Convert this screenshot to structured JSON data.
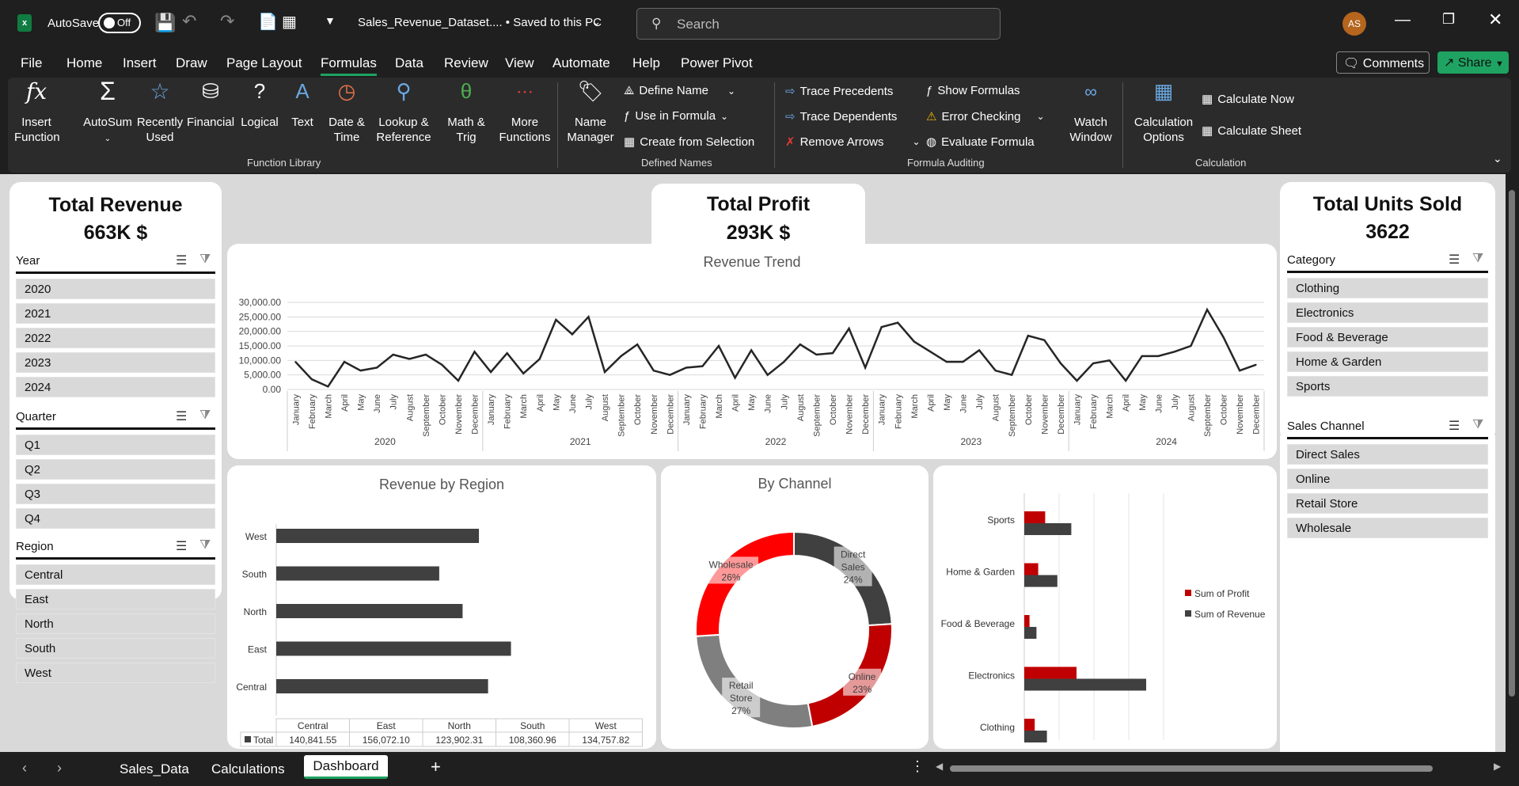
{
  "titlebar": {
    "autosave_label": "AutoSave",
    "autosave_state": "Off",
    "doc_title": "Sales_Revenue_Dataset.... • Saved to this PC",
    "search_placeholder": "Search",
    "avatar": "AS"
  },
  "menu": {
    "items": [
      "File",
      "Home",
      "Insert",
      "Draw",
      "Page Layout",
      "Formulas",
      "Data",
      "Review",
      "View",
      "Automate",
      "Help",
      "Power Pivot"
    ],
    "active": "Formulas",
    "comments": "Comments",
    "share": "Share"
  },
  "ribbon": {
    "function_library": {
      "buttons": [
        "Insert\nFunction",
        "AutoSum",
        "Recently\nUsed",
        "Financial",
        "Logical",
        "Text",
        "Date &\nTime",
        "Lookup &\nReference",
        "Math &\nTrig",
        "More\nFunctions"
      ],
      "label": "Function Library"
    },
    "defined_names": {
      "name_manager": "Name\nManager",
      "define_name": "Define Name",
      "use_in_formula": "Use in Formula",
      "create_from_selection": "Create from Selection",
      "label": "Defined Names"
    },
    "formula_auditing": {
      "trace_precedents": "Trace Precedents",
      "trace_dependents": "Trace Dependents",
      "remove_arrows": "Remove Arrows",
      "show_formulas": "Show Formulas",
      "error_checking": "Error Checking",
      "evaluate_formula": "Evaluate Formula",
      "watch_window": "Watch\nWindow",
      "label": "Formula Auditing"
    },
    "calculation": {
      "calc_options": "Calculation\nOptions",
      "calc_now": "Calculate Now",
      "calc_sheet": "Calculate Sheet",
      "label": "Calculation"
    }
  },
  "kpis": {
    "revenue_title": "Total Revenue",
    "revenue_value": "663K $",
    "profit_title": "Total Profit",
    "profit_value": "293K $",
    "units_title": "Total Units Sold",
    "units_value": "3622"
  },
  "slicers": {
    "year": {
      "title": "Year",
      "items": [
        "2020",
        "2021",
        "2022",
        "2023",
        "2024"
      ]
    },
    "quarter": {
      "title": "Quarter",
      "items": [
        "Q1",
        "Q2",
        "Q3",
        "Q4"
      ]
    },
    "region": {
      "title": "Region",
      "items": [
        "Central",
        "East",
        "North",
        "South",
        "West"
      ]
    },
    "category": {
      "title": "Category",
      "items": [
        "Clothing",
        "Electronics",
        "Food & Beverage",
        "Home & Garden",
        "Sports"
      ]
    },
    "channel": {
      "title": "Sales Channel",
      "items": [
        "Direct Sales",
        "Online",
        "Retail Store",
        "Wholesale"
      ]
    }
  },
  "colors": {
    "dark": "#3a3a3a",
    "red": "#ff0000",
    "darkred": "#c00000",
    "gray": "#7f7f7f"
  },
  "chart_data": [
    {
      "type": "line",
      "title": "Revenue Trend",
      "months": [
        "January",
        "February",
        "March",
        "April",
        "May",
        "June",
        "July",
        "August",
        "September",
        "October",
        "November",
        "December"
      ],
      "years": [
        "2020",
        "2021",
        "2022",
        "2023",
        "2024"
      ],
      "ylim": [
        0,
        30000
      ],
      "yticks": [
        "30,000.00",
        "25,000.00",
        "20,000.00",
        "15,000.00",
        "10,000.00",
        "5,000.00",
        "0.00"
      ],
      "values": [
        9500,
        3500,
        1000,
        9500,
        6500,
        7500,
        12000,
        10500,
        12000,
        8500,
        3000,
        13000,
        6000,
        12500,
        5500,
        10500,
        24000,
        19000,
        25000,
        6000,
        11500,
        15500,
        6500,
        5000,
        7500,
        8000,
        15000,
        4000,
        13500,
        5000,
        9500,
        15500,
        12000,
        12500,
        21000,
        7500,
        21500,
        23000,
        16500,
        13000,
        9500,
        9500,
        13500,
        6500,
        5000,
        18500,
        17000,
        9000,
        3000,
        9000,
        10000,
        3000,
        11500,
        11500,
        13000,
        15000,
        27500,
        18000,
        6500,
        8500
      ]
    },
    {
      "type": "bar",
      "title": "Revenue by Region",
      "categories": [
        "West",
        "South",
        "North",
        "East",
        "Central"
      ],
      "values": [
        134757.82,
        108360.96,
        123902.31,
        156072.1,
        140841.55
      ],
      "table": {
        "headers": [
          "Central",
          "East",
          "North",
          "South",
          "West"
        ],
        "row_label": "Total",
        "row": [
          "140,841.55",
          "156,072.10",
          "123,902.31",
          "108,360.96",
          "134,757.82"
        ]
      }
    },
    {
      "type": "pie",
      "title": "By Channel",
      "slices": [
        {
          "label": "Direct Sales",
          "value": 24
        },
        {
          "label": "Online",
          "value": 23
        },
        {
          "label": "Retail Store",
          "value": 27
        },
        {
          "label": "Wholesale",
          "value": 26
        }
      ],
      "label_texts": [
        "Direct\nSales\n24%",
        "Online\n23%",
        "Retail\nStore\n27%",
        "Wholesale\n26%"
      ]
    },
    {
      "type": "bar",
      "title": "",
      "categories": [
        "Sports",
        "Home & Garden",
        "Food & Beverage",
        "Electronics",
        "Clothing"
      ],
      "series": [
        {
          "name": "Sum of Profit",
          "values": [
            12,
            8,
            3,
            30,
            6
          ]
        },
        {
          "name": "Sum of Revenue",
          "values": [
            27,
            19,
            7,
            70,
            13
          ]
        }
      ]
    }
  ],
  "sheet_tabs": {
    "tabs": [
      "Sales_Data",
      "Calculations",
      "Dashboard"
    ],
    "active": "Dashboard"
  }
}
